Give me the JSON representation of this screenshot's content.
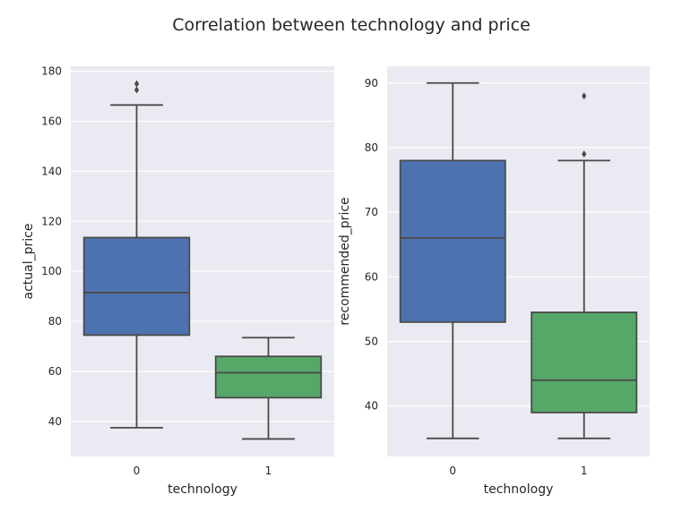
{
  "figure": {
    "title": "Correlation between technology and price"
  },
  "colors": {
    "background": "#eaeaf2",
    "grid": "#ffffff",
    "line": "#4a4a4a",
    "category_0": "#4c72b0",
    "category_1": "#55a868"
  },
  "chart_data": [
    {
      "type": "box",
      "xlabel": "technology",
      "ylabel": "actual_price",
      "categories": [
        "0",
        "1"
      ],
      "ylim": [
        26,
        182
      ],
      "yticks": [
        40,
        60,
        80,
        100,
        120,
        140,
        160,
        180
      ],
      "grid": true,
      "boxes": [
        {
          "category": "0",
          "whisker_low": 37.5,
          "q1": 74.5,
          "median": 91.5,
          "q3": 113.5,
          "whisker_high": 166.5,
          "outliers": [
            172.5,
            175
          ]
        },
        {
          "category": "1",
          "whisker_low": 33,
          "q1": 49.5,
          "median": 59.5,
          "q3": 66,
          "whisker_high": 73.5,
          "outliers": []
        }
      ]
    },
    {
      "type": "box",
      "xlabel": "technology",
      "ylabel": "recommended_price",
      "categories": [
        "0",
        "1"
      ],
      "ylim": [
        32.2,
        92.6
      ],
      "yticks": [
        40,
        50,
        60,
        70,
        80,
        90
      ],
      "grid": true,
      "boxes": [
        {
          "category": "0",
          "whisker_low": 35,
          "q1": 53,
          "median": 66,
          "q3": 78,
          "whisker_high": 90,
          "outliers": []
        },
        {
          "category": "1",
          "whisker_low": 35,
          "q1": 39,
          "median": 44,
          "q3": 54.5,
          "whisker_high": 78,
          "outliers": [
            79,
            88
          ]
        }
      ]
    }
  ]
}
